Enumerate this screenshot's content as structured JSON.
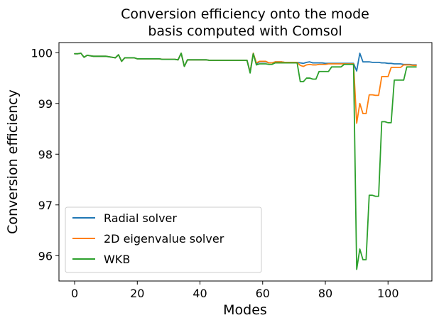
{
  "chart_data": {
    "type": "line",
    "title_lines": [
      "Conversion efficiency onto the mode",
      "basis computed with Comsol"
    ],
    "xlabel": "Modes",
    "ylabel": "Conversion efficiency",
    "xlim": [
      -5,
      114
    ],
    "ylim": [
      95.5,
      100.2
    ],
    "xticks": [
      0,
      20,
      40,
      60,
      80,
      100
    ],
    "yticks": [
      96,
      97,
      98,
      99,
      100
    ],
    "grid": false,
    "legend_position": "lower-left",
    "series": [
      {
        "name": "Radial solver",
        "color": "#1f77b4",
        "x": [
          0,
          1,
          2,
          3,
          4,
          5,
          6,
          7,
          8,
          9,
          10,
          11,
          12,
          13,
          14,
          15,
          16,
          17,
          18,
          19,
          20,
          21,
          22,
          23,
          24,
          25,
          26,
          27,
          28,
          29,
          30,
          31,
          32,
          33,
          34,
          35,
          36,
          37,
          38,
          39,
          40,
          41,
          42,
          43,
          44,
          45,
          46,
          47,
          48,
          49,
          50,
          51,
          52,
          53,
          54,
          55,
          56,
          57,
          58,
          59,
          60,
          61,
          62,
          63,
          64,
          65,
          66,
          67,
          68,
          69,
          70,
          71,
          72,
          73,
          74,
          75,
          76,
          77,
          78,
          79,
          80,
          81,
          82,
          83,
          84,
          85,
          86,
          87,
          88,
          89,
          90,
          91,
          92,
          93,
          94,
          95,
          96,
          97,
          98,
          99,
          100,
          101,
          102,
          103,
          104,
          105,
          106,
          107,
          108,
          109
        ],
        "y": [
          99.98,
          99.98,
          99.99,
          99.91,
          99.95,
          99.94,
          99.93,
          99.93,
          99.93,
          99.93,
          99.93,
          99.92,
          99.91,
          99.9,
          99.96,
          99.83,
          99.9,
          99.9,
          99.9,
          99.9,
          99.88,
          99.88,
          99.88,
          99.88,
          99.88,
          99.88,
          99.88,
          99.88,
          99.87,
          99.87,
          99.87,
          99.87,
          99.87,
          99.86,
          99.99,
          99.73,
          99.86,
          99.86,
          99.86,
          99.86,
          99.86,
          99.86,
          99.86,
          99.85,
          99.85,
          99.85,
          99.85,
          99.85,
          99.85,
          99.85,
          99.85,
          99.85,
          99.85,
          99.85,
          99.85,
          99.85,
          99.62,
          99.99,
          99.78,
          99.82,
          99.82,
          99.82,
          99.8,
          99.8,
          99.82,
          99.82,
          99.82,
          99.81,
          99.81,
          99.81,
          99.81,
          99.81,
          99.8,
          99.79,
          99.81,
          99.82,
          99.8,
          99.8,
          99.8,
          99.8,
          99.79,
          99.79,
          99.79,
          99.79,
          99.79,
          99.79,
          99.79,
          99.79,
          99.79,
          99.79,
          99.64,
          99.99,
          99.82,
          99.82,
          99.82,
          99.81,
          99.81,
          99.81,
          99.8,
          99.8,
          99.79,
          99.79,
          99.78,
          99.78,
          99.78,
          99.77,
          99.77,
          99.77,
          99.76,
          99.76
        ]
      },
      {
        "name": "2D eigenvalue solver",
        "color": "#ff7f0e",
        "x": [
          0,
          1,
          2,
          3,
          4,
          5,
          6,
          7,
          8,
          9,
          10,
          11,
          12,
          13,
          14,
          15,
          16,
          17,
          18,
          19,
          20,
          21,
          22,
          23,
          24,
          25,
          26,
          27,
          28,
          29,
          30,
          31,
          32,
          33,
          34,
          35,
          36,
          37,
          38,
          39,
          40,
          41,
          42,
          43,
          44,
          45,
          46,
          47,
          48,
          49,
          50,
          51,
          52,
          53,
          54,
          55,
          56,
          57,
          58,
          59,
          60,
          61,
          62,
          63,
          64,
          65,
          66,
          67,
          68,
          69,
          70,
          71,
          72,
          73,
          74,
          75,
          76,
          77,
          78,
          79,
          80,
          81,
          82,
          83,
          84,
          85,
          86,
          87,
          88,
          89,
          90,
          91,
          92,
          93,
          94,
          95,
          96,
          97,
          98,
          99,
          100,
          101,
          102,
          103,
          104,
          105,
          106,
          107,
          108,
          109
        ],
        "y": [
          99.98,
          99.98,
          99.99,
          99.91,
          99.95,
          99.94,
          99.93,
          99.93,
          99.93,
          99.93,
          99.93,
          99.92,
          99.91,
          99.9,
          99.96,
          99.83,
          99.9,
          99.9,
          99.9,
          99.9,
          99.88,
          99.88,
          99.88,
          99.88,
          99.88,
          99.88,
          99.88,
          99.88,
          99.87,
          99.87,
          99.87,
          99.87,
          99.87,
          99.86,
          99.99,
          99.73,
          99.86,
          99.86,
          99.86,
          99.86,
          99.86,
          99.86,
          99.86,
          99.85,
          99.85,
          99.85,
          99.85,
          99.85,
          99.85,
          99.85,
          99.85,
          99.85,
          99.85,
          99.85,
          99.85,
          99.85,
          99.62,
          99.99,
          99.8,
          99.83,
          99.83,
          99.83,
          99.8,
          99.8,
          99.82,
          99.82,
          99.82,
          99.81,
          99.81,
          99.81,
          99.81,
          99.81,
          99.75,
          99.73,
          99.76,
          99.77,
          99.76,
          99.76,
          99.77,
          99.77,
          99.77,
          99.78,
          99.78,
          99.78,
          99.78,
          99.78,
          99.78,
          99.78,
          99.78,
          99.78,
          98.61,
          99.0,
          98.8,
          98.8,
          99.17,
          99.17,
          99.16,
          99.16,
          99.53,
          99.53,
          99.53,
          99.71,
          99.71,
          99.71,
          99.71,
          99.76,
          99.76,
          99.76,
          99.75,
          99.75
        ]
      },
      {
        "name": "WKB",
        "color": "#2ca02c",
        "x": [
          0,
          1,
          2,
          3,
          4,
          5,
          6,
          7,
          8,
          9,
          10,
          11,
          12,
          13,
          14,
          15,
          16,
          17,
          18,
          19,
          20,
          21,
          22,
          23,
          24,
          25,
          26,
          27,
          28,
          29,
          30,
          31,
          32,
          33,
          34,
          35,
          36,
          37,
          38,
          39,
          40,
          41,
          42,
          43,
          44,
          45,
          46,
          47,
          48,
          49,
          50,
          51,
          52,
          53,
          54,
          55,
          56,
          57,
          58,
          59,
          60,
          61,
          62,
          63,
          64,
          65,
          66,
          67,
          68,
          69,
          70,
          71,
          72,
          73,
          74,
          75,
          76,
          77,
          78,
          79,
          80,
          81,
          82,
          83,
          84,
          85,
          86,
          87,
          88,
          89,
          90,
          91,
          92,
          93,
          94,
          95,
          96,
          97,
          98,
          99,
          100,
          101,
          102,
          103,
          104,
          105,
          106,
          107,
          108,
          109
        ],
        "y": [
          99.98,
          99.98,
          99.99,
          99.91,
          99.95,
          99.94,
          99.93,
          99.93,
          99.93,
          99.93,
          99.93,
          99.92,
          99.91,
          99.9,
          99.96,
          99.83,
          99.9,
          99.9,
          99.9,
          99.9,
          99.88,
          99.88,
          99.88,
          99.88,
          99.88,
          99.88,
          99.88,
          99.88,
          99.87,
          99.87,
          99.87,
          99.87,
          99.87,
          99.86,
          99.99,
          99.73,
          99.86,
          99.86,
          99.86,
          99.86,
          99.86,
          99.86,
          99.86,
          99.85,
          99.85,
          99.85,
          99.85,
          99.85,
          99.85,
          99.85,
          99.85,
          99.85,
          99.85,
          99.85,
          99.85,
          99.85,
          99.6,
          99.98,
          99.76,
          99.78,
          99.78,
          99.78,
          99.77,
          99.77,
          99.8,
          99.8,
          99.8,
          99.8,
          99.8,
          99.8,
          99.8,
          99.8,
          99.43,
          99.43,
          99.5,
          99.5,
          99.48,
          99.48,
          99.63,
          99.63,
          99.63,
          99.63,
          99.72,
          99.72,
          99.72,
          99.72,
          99.77,
          99.77,
          99.77,
          99.77,
          95.73,
          96.13,
          95.92,
          95.92,
          97.19,
          97.19,
          97.17,
          97.17,
          98.64,
          98.64,
          98.62,
          98.62,
          99.46,
          99.46,
          99.46,
          99.46,
          99.72,
          99.72,
          99.72,
          99.72
        ]
      }
    ]
  }
}
